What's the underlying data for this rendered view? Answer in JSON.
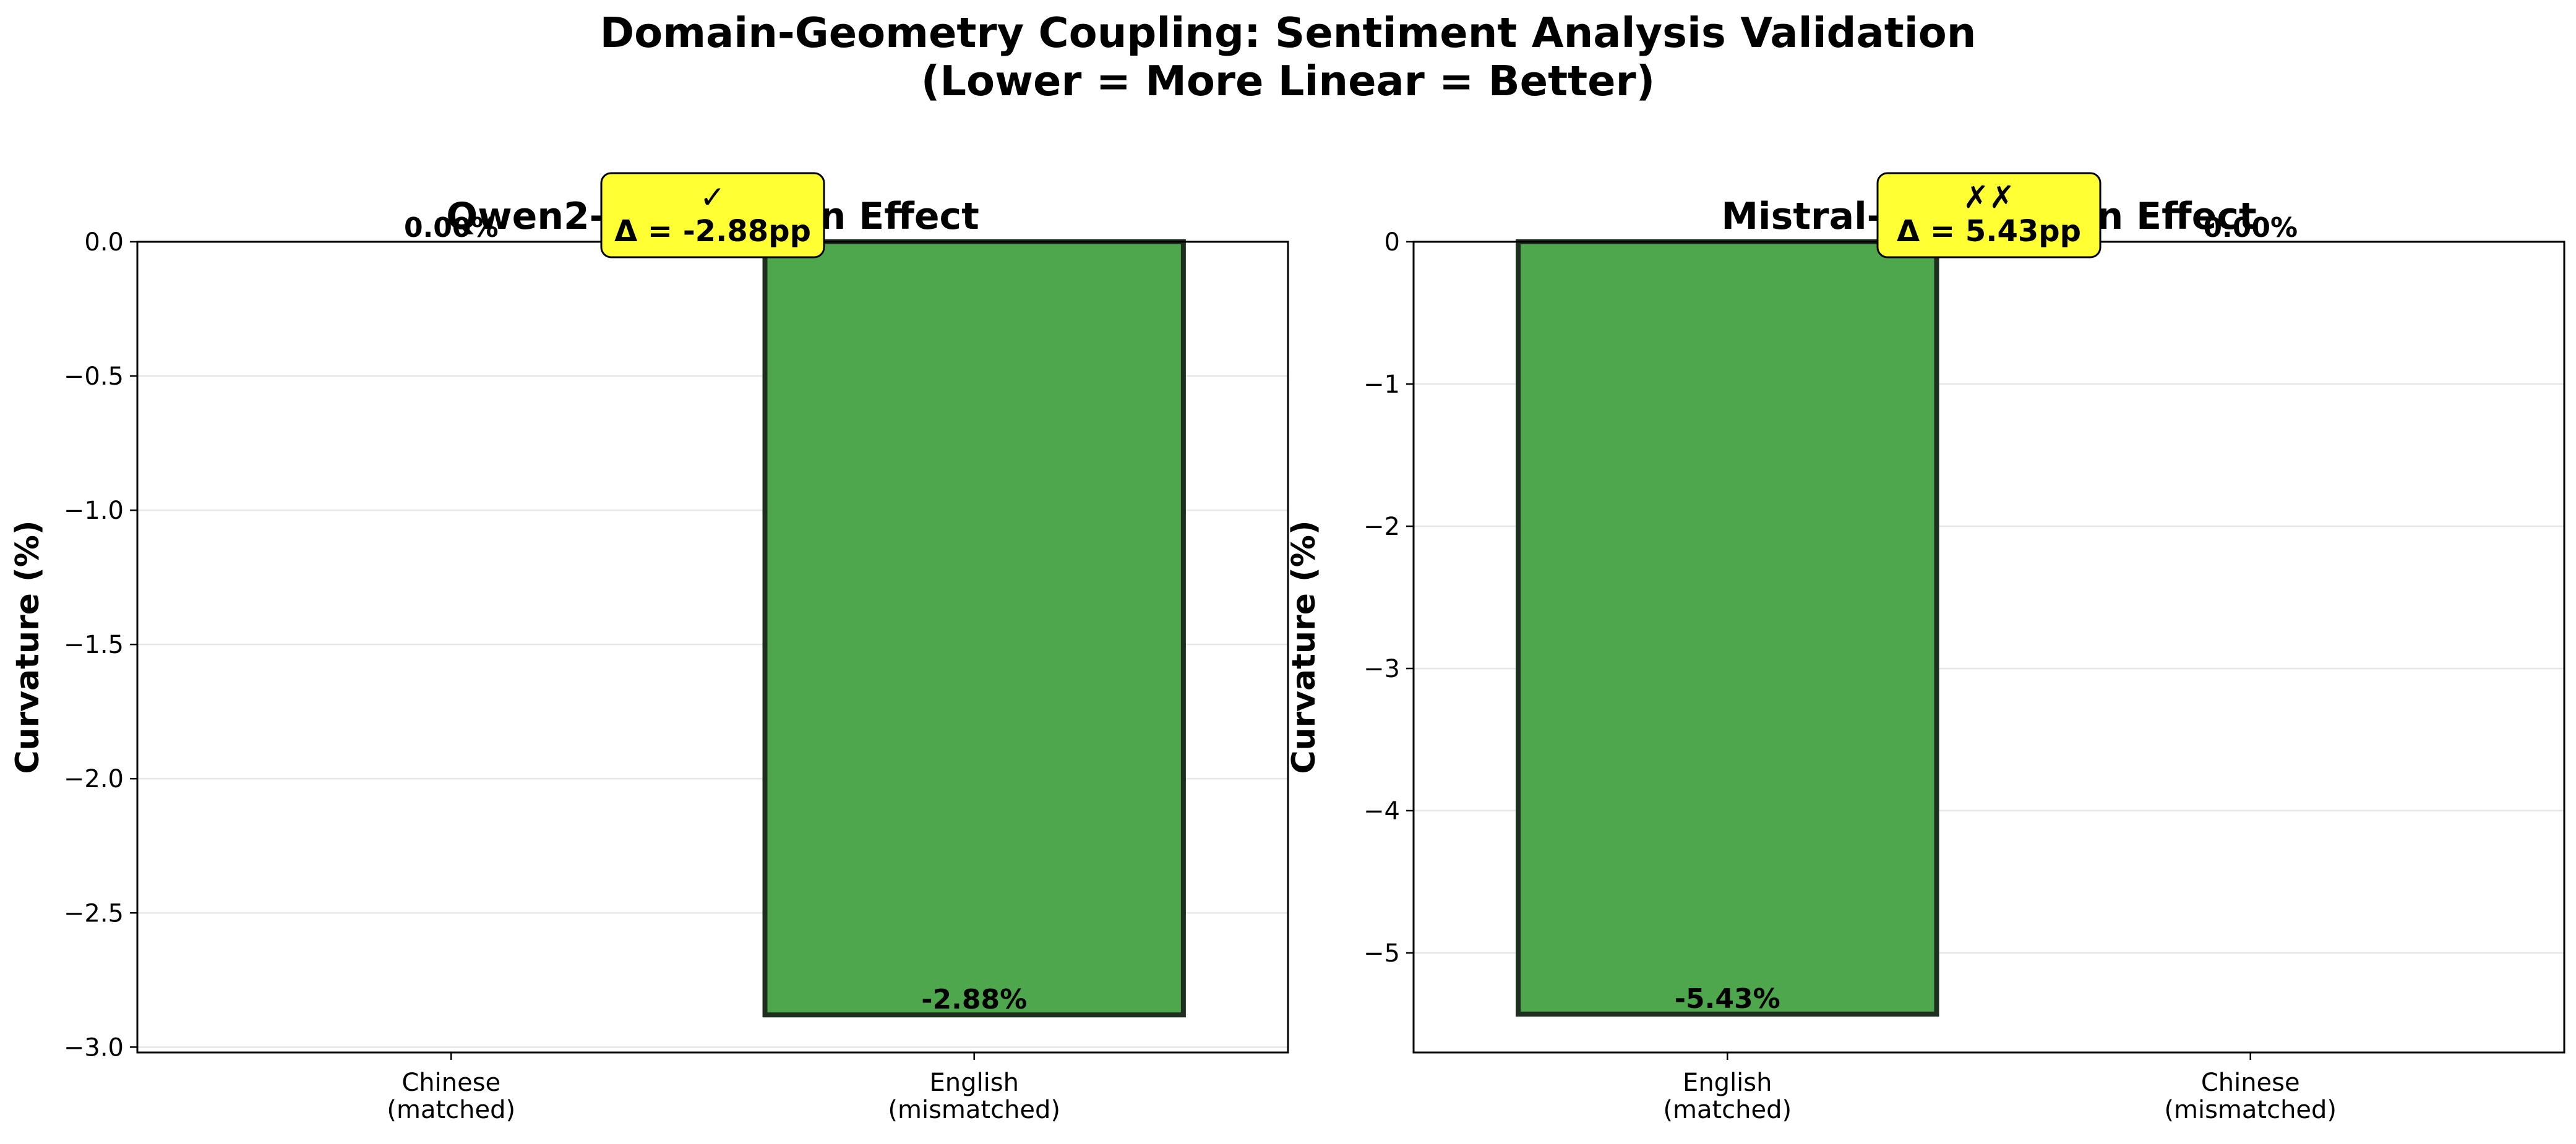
{
  "figure": {
    "title_line1": "Domain-Geometry Coupling: Sentiment Analysis Validation",
    "title_line2": "(Lower = More Linear = Better)"
  },
  "chart_data": [
    {
      "type": "bar",
      "title": "Qwen2-7B: Domain Effect",
      "ylabel": "Curvature (%)",
      "categories": [
        "Chinese\n(matched)",
        "English\n(mismatched)"
      ],
      "values": [
        0.0,
        -2.88
      ],
      "value_labels": [
        "0.00%",
        "-2.88%"
      ],
      "bar_colors": [
        "#ffffff",
        "#4ea74d"
      ],
      "ylim": [
        -3.02,
        0.0
      ],
      "yticks": [
        0.0,
        -0.5,
        -1.0,
        -1.5,
        -2.0,
        -2.5,
        -3.0
      ],
      "ytick_labels": [
        "0.0",
        "−0.5",
        "−1.0",
        "−1.5",
        "−2.0",
        "−2.5",
        "−3.0"
      ],
      "annotation": {
        "marker": "✓",
        "text": "Δ = -2.88pp",
        "color": "#ffff33"
      },
      "grid": "y"
    },
    {
      "type": "bar",
      "title": "Mistral-7B: Domain Effect",
      "ylabel": "Curvature (%)",
      "categories": [
        "English\n(matched)",
        "Chinese\n(mismatched)"
      ],
      "values": [
        -5.43,
        0.0
      ],
      "value_labels": [
        "-5.43%",
        "0.00%"
      ],
      "bar_colors": [
        "#4ea74d",
        "#ffffff"
      ],
      "ylim": [
        -5.7,
        0.0
      ],
      "yticks": [
        0,
        -1,
        -2,
        -3,
        -4,
        -5
      ],
      "ytick_labels": [
        "0",
        "−1",
        "−2",
        "−3",
        "−4",
        "−5"
      ],
      "annotation": {
        "marker": "✗✗",
        "text": "Δ = 5.43pp",
        "color": "#ffff33"
      },
      "grid": "y"
    }
  ]
}
